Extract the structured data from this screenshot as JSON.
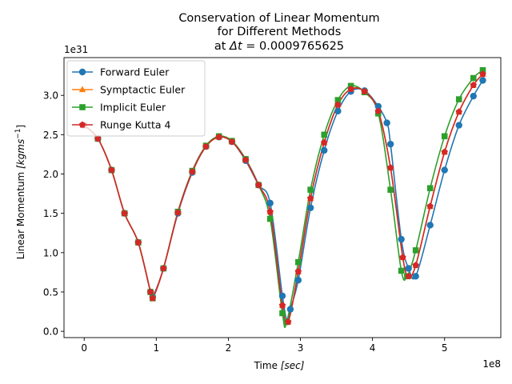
{
  "chart_data": {
    "type": "line",
    "title_lines": [
      "Conservation of Linear Momentum",
      "for Different Methods"
    ],
    "title_dt_prefix": "at ",
    "title_dt_symbol": "Δt",
    "title_dt_value": " = 0.0009765625",
    "xlabel_prefix": "Time ",
    "xlabel_unit": "[sec]",
    "ylabel_prefix": "Linear Momentum ",
    "ylabel_unit": "[kgms",
    "ylabel_unit_exp": "−1",
    "ylabel_unit_close": "]",
    "x_offset_text": "1e8",
    "y_offset_text": "1e31",
    "xlim": [
      -0.28,
      5.78
    ],
    "ylim": [
      -0.08,
      3.48
    ],
    "x_ticks": [
      0,
      1,
      2,
      3,
      4,
      5
    ],
    "x_tick_labels": [
      "0",
      "1",
      "2",
      "3",
      "4",
      "5"
    ],
    "y_ticks": [
      0.0,
      0.5,
      1.0,
      1.5,
      2.0,
      2.5,
      3.0
    ],
    "y_tick_labels": [
      "0.0",
      "0.5",
      "1.0",
      "1.5",
      "2.0",
      "2.5",
      "3.0"
    ],
    "grid": false,
    "legend_position": "upper-left",
    "series": [
      {
        "name": "Forward Euler",
        "color": "#1f77b4",
        "marker": "circle",
        "x": [
          0.0,
          0.19,
          0.38,
          0.56,
          0.75,
          0.92,
          0.95,
          1.1,
          1.3,
          1.5,
          1.69,
          1.87,
          2.05,
          2.24,
          2.42,
          2.58,
          2.75,
          2.82,
          2.86,
          2.97,
          3.14,
          3.33,
          3.52,
          3.7,
          3.89,
          4.08,
          4.2,
          4.25,
          4.4,
          4.5,
          4.6,
          4.8,
          5.0,
          5.2,
          5.4,
          5.53
        ],
        "y": [
          2.62,
          2.45,
          2.05,
          1.5,
          1.13,
          0.5,
          0.44,
          0.8,
          1.5,
          2.02,
          2.35,
          2.47,
          2.41,
          2.17,
          1.86,
          1.63,
          0.45,
          0.12,
          0.28,
          0.65,
          1.57,
          2.3,
          2.8,
          3.05,
          3.06,
          2.86,
          2.65,
          2.38,
          1.17,
          0.8,
          0.7,
          1.35,
          2.05,
          2.62,
          2.99,
          3.19
        ]
      },
      {
        "name": "Symptactic Euler",
        "color": "#ff7f0e",
        "marker": "triangle",
        "x": [
          0.0,
          0.19,
          0.38,
          0.56,
          0.75,
          0.92,
          0.95,
          1.1,
          1.3,
          1.5,
          1.69,
          1.87,
          2.05,
          2.24,
          2.42,
          2.58,
          2.75,
          2.83,
          2.97,
          3.14,
          3.33,
          3.52,
          3.7,
          3.89,
          4.08,
          4.25,
          4.42,
          4.5,
          4.6,
          4.8,
          5.0,
          5.2,
          5.4,
          5.53
        ],
        "y": [
          2.62,
          2.45,
          2.05,
          1.5,
          1.13,
          0.5,
          0.42,
          0.8,
          1.51,
          2.03,
          2.35,
          2.47,
          2.41,
          2.18,
          1.86,
          1.52,
          0.33,
          0.12,
          0.76,
          1.69,
          2.4,
          2.88,
          3.08,
          3.05,
          2.8,
          2.08,
          0.94,
          0.7,
          0.84,
          1.59,
          2.28,
          2.79,
          3.13,
          3.27
        ]
      },
      {
        "name": "Implicit Euler",
        "color": "#2ca02c",
        "marker": "square",
        "x": [
          0.0,
          0.19,
          0.38,
          0.56,
          0.75,
          0.92,
          0.95,
          1.1,
          1.3,
          1.5,
          1.69,
          1.87,
          2.05,
          2.24,
          2.42,
          2.58,
          2.75,
          2.81,
          2.97,
          3.14,
          3.33,
          3.52,
          3.7,
          3.89,
          4.08,
          4.25,
          4.4,
          4.48,
          4.6,
          4.8,
          5.0,
          5.2,
          5.4,
          5.53
        ],
        "y": [
          2.62,
          2.45,
          2.05,
          1.5,
          1.13,
          0.5,
          0.42,
          0.8,
          1.52,
          2.04,
          2.36,
          2.48,
          2.42,
          2.19,
          1.86,
          1.43,
          0.23,
          0.12,
          0.88,
          1.8,
          2.5,
          2.94,
          3.12,
          3.04,
          2.77,
          1.8,
          0.77,
          0.7,
          1.03,
          1.82,
          2.48,
          2.95,
          3.22,
          3.32
        ]
      },
      {
        "name": "Runge Kutta 4",
        "color": "#d62728",
        "marker": "pentagon",
        "x": [
          0.0,
          0.19,
          0.38,
          0.56,
          0.75,
          0.92,
          0.95,
          1.1,
          1.3,
          1.5,
          1.69,
          1.87,
          2.05,
          2.24,
          2.42,
          2.58,
          2.75,
          2.83,
          2.97,
          3.14,
          3.33,
          3.52,
          3.7,
          3.89,
          4.08,
          4.25,
          4.42,
          4.5,
          4.6,
          4.8,
          5.0,
          5.2,
          5.4,
          5.53
        ],
        "y": [
          2.62,
          2.45,
          2.05,
          1.5,
          1.13,
          0.5,
          0.42,
          0.8,
          1.51,
          2.03,
          2.35,
          2.47,
          2.41,
          2.18,
          1.86,
          1.52,
          0.33,
          0.12,
          0.76,
          1.69,
          2.4,
          2.88,
          3.08,
          3.05,
          2.8,
          2.08,
          0.94,
          0.7,
          0.84,
          1.59,
          2.28,
          2.79,
          3.13,
          3.27
        ]
      }
    ]
  }
}
